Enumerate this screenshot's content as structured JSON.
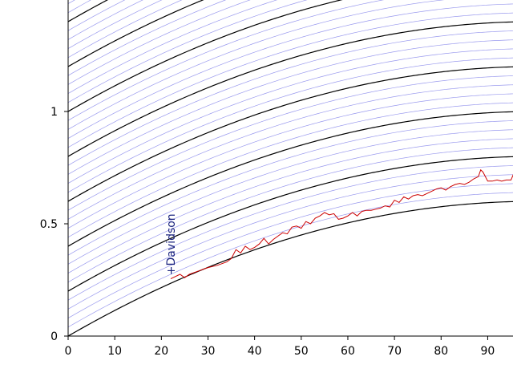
{
  "chart_data": {
    "type": "line",
    "title": "",
    "xlabel": "",
    "ylabel": "",
    "xlim": [
      0,
      95.5
    ],
    "ylim": [
      0,
      1.5
    ],
    "x_ticks": [
      "0",
      "10",
      "20",
      "30",
      "40",
      "50",
      "60",
      "70",
      "80",
      "90"
    ],
    "x_tick_values": [
      0,
      10,
      20,
      30,
      40,
      50,
      60,
      70,
      80,
      90
    ],
    "y_ticks": [
      "0",
      "0.5",
      "1"
    ],
    "y_tick_values": [
      0,
      0.5,
      1
    ],
    "grid": false,
    "reference_curves": {
      "description_free": true,
      "shape": "saturating",
      "x_saturation": 100,
      "base_height_at_saturation": 0.6,
      "offset_step": 0.04,
      "offset_count": 38,
      "bold_every": 5,
      "minor_color": "#9999ee",
      "major_color": "#000000"
    },
    "series": [
      {
        "color": "#cc0000",
        "x": [
          22,
          24,
          25,
          26,
          28,
          30,
          32,
          34,
          35,
          36,
          37,
          38,
          39,
          40,
          41,
          42,
          43,
          44,
          45,
          46,
          47,
          48,
          49,
          50,
          51,
          52,
          53,
          54,
          55,
          56,
          57,
          58,
          59,
          60,
          61,
          62,
          63,
          64,
          65,
          66,
          67,
          68,
          69,
          70,
          71,
          72,
          73,
          74,
          75,
          76,
          77,
          78,
          79,
          80,
          81,
          82,
          83,
          84,
          85,
          86,
          87,
          88,
          88.5,
          89,
          90,
          91,
          92,
          93,
          94,
          95,
          95.5
        ],
        "y": [
          0.255,
          0.275,
          0.26,
          0.275,
          0.29,
          0.305,
          0.315,
          0.33,
          0.345,
          0.385,
          0.37,
          0.4,
          0.385,
          0.395,
          0.41,
          0.435,
          0.41,
          0.43,
          0.445,
          0.46,
          0.455,
          0.485,
          0.49,
          0.48,
          0.51,
          0.5,
          0.525,
          0.535,
          0.55,
          0.54,
          0.545,
          0.52,
          0.525,
          0.535,
          0.55,
          0.535,
          0.555,
          0.56,
          0.56,
          0.565,
          0.57,
          0.58,
          0.575,
          0.605,
          0.595,
          0.62,
          0.61,
          0.625,
          0.63,
          0.625,
          0.635,
          0.645,
          0.655,
          0.66,
          0.65,
          0.665,
          0.675,
          0.68,
          0.675,
          0.685,
          0.7,
          0.71,
          0.74,
          0.73,
          0.69,
          0.69,
          0.695,
          0.69,
          0.695,
          0.695,
          0.72
        ]
      }
    ],
    "annotations": [
      {
        "text": "Davidson",
        "x": 22,
        "y": 0.235
      }
    ]
  }
}
